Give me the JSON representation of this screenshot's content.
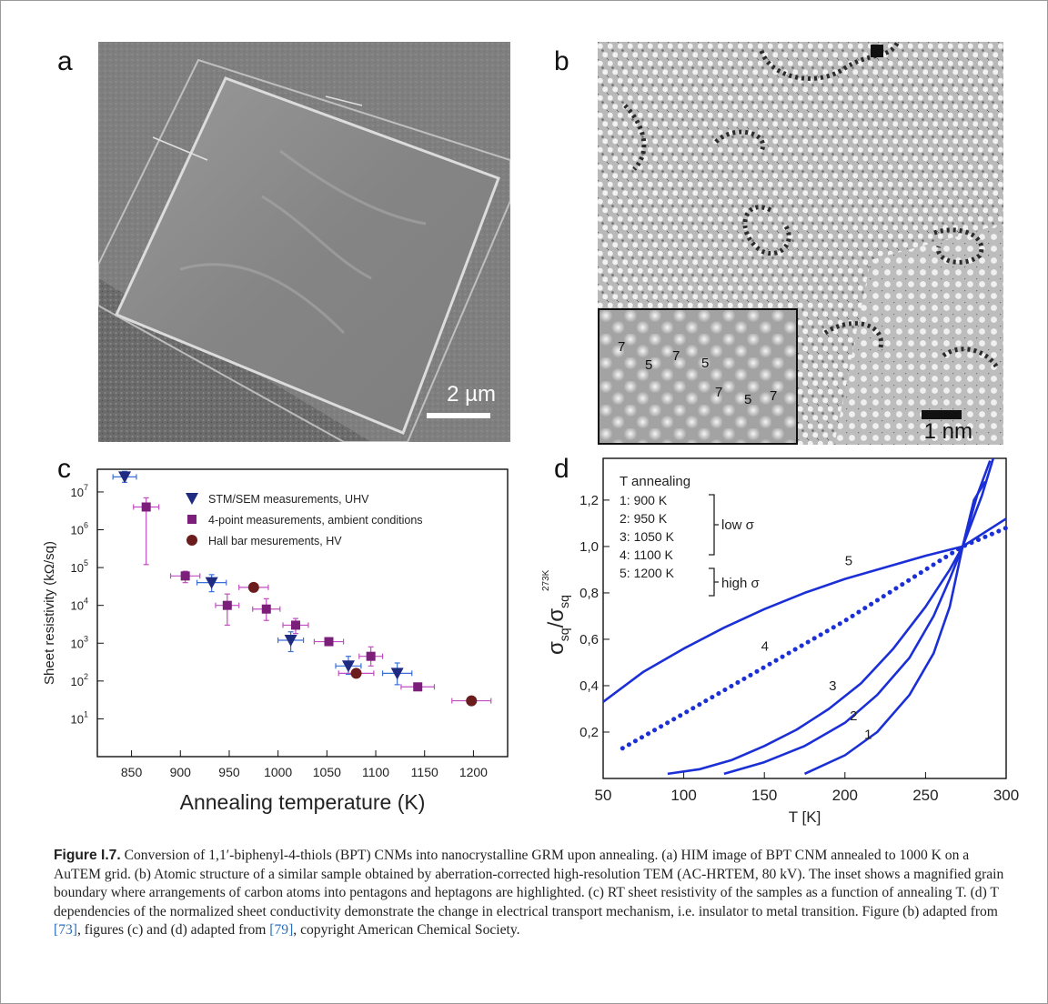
{
  "panels": {
    "a": {
      "letter": "a",
      "scalebar": "2 µm"
    },
    "b": {
      "letter": "b",
      "scalebar": "1 nm",
      "inset_numbers": [
        "7",
        "5",
        "7",
        "5",
        "7",
        "5",
        "7"
      ]
    },
    "c": {
      "letter": "c"
    },
    "d": {
      "letter": "d"
    }
  },
  "chart_data": [
    {
      "type": "scatter",
      "panel": "c",
      "xlabel": "Annealing temperature (K)",
      "ylabel": "Sheet resistivity (kΩ/sq)",
      "xlim": [
        815,
        1235
      ],
      "ylim_log10": [
        0,
        7.6
      ],
      "yscale": "log",
      "xticks": [
        850,
        900,
        950,
        1000,
        1050,
        1100,
        1150,
        1200
      ],
      "yticks": [
        "10^1",
        "10^2",
        "10^3",
        "10^4",
        "10^5",
        "10^6",
        "10^7"
      ],
      "ytick_exponents": [
        1,
        2,
        3,
        4,
        5,
        6,
        7
      ],
      "legend_position": "top-right",
      "series": [
        {
          "name": "STM/SEM measurements, UHV",
          "marker": "triangle-down",
          "color": "#1f2b80",
          "points": [
            {
              "x": 843,
              "y": 25000000.0,
              "xerr": 12,
              "yerr_lo": 18000000.0,
              "yerr_hi": 35000000.0
            },
            {
              "x": 932,
              "y": 40000.0,
              "xerr": 15,
              "yerr_lo": 23000.0,
              "yerr_hi": 65000.0
            },
            {
              "x": 1013,
              "y": 1200.0,
              "xerr": 13,
              "yerr_lo": 600.0,
              "yerr_hi": 2000.0
            },
            {
              "x": 1072,
              "y": 250,
              "xerr": 13,
              "yerr_lo": 150,
              "yerr_hi": 450
            },
            {
              "x": 1122,
              "y": 160,
              "xerr": 15,
              "yerr_lo": 80,
              "yerr_hi": 300
            }
          ]
        },
        {
          "name": "4-point measurements, ambient conditions",
          "marker": "square",
          "color": "#7b1f7a",
          "points": [
            {
              "x": 865,
              "y": 4000000.0,
              "xerr": 13,
              "yerr_lo": 120000.0,
              "yerr_hi": 7000000.0
            },
            {
              "x": 905,
              "y": 60000.0,
              "xerr": 15,
              "yerr_lo": 40000.0,
              "yerr_hi": 80000.0
            },
            {
              "x": 948,
              "y": 10000.0,
              "xerr": 12,
              "yerr_lo": 3000.0,
              "yerr_hi": 20000.0
            },
            {
              "x": 988,
              "y": 8000.0,
              "xerr": 14,
              "yerr_lo": 4000.0,
              "yerr_hi": 15000.0
            },
            {
              "x": 1018,
              "y": 3000.0,
              "xerr": 13,
              "yerr_lo": 1800.0,
              "yerr_hi": 4500.0
            },
            {
              "x": 1052,
              "y": 1100.0,
              "xerr": 15,
              "yerr_lo": 1100.0,
              "yerr_hi": 1100.0
            },
            {
              "x": 1095,
              "y": 450,
              "xerr": 12,
              "yerr_lo": 250,
              "yerr_hi": 800
            },
            {
              "x": 1143,
              "y": 70,
              "xerr": 17,
              "yerr_lo": 70,
              "yerr_hi": 70
            }
          ]
        },
        {
          "name": "Hall bar mesurements, HV",
          "marker": "circle",
          "color": "#6b1d1d",
          "points": [
            {
              "x": 975,
              "y": 30000.0,
              "xerr": 15,
              "yerr_lo": 30000.0,
              "yerr_hi": 30000.0
            },
            {
              "x": 1080,
              "y": 160,
              "xerr": 18,
              "yerr_lo": 160,
              "yerr_hi": 160
            },
            {
              "x": 1198,
              "y": 30,
              "xerr": 20,
              "yerr_lo": 30,
              "yerr_hi": 30
            }
          ]
        }
      ]
    },
    {
      "type": "line",
      "panel": "d",
      "xlabel": "T [K]",
      "xlim": [
        50,
        300
      ],
      "ylim": [
        0,
        1.38
      ],
      "xticks": [
        50,
        100,
        150,
        200,
        250,
        300
      ],
      "yticks": [
        0.2,
        0.4,
        0.6,
        0.8,
        1.0,
        1.2
      ],
      "ytick_labels": [
        "0,2",
        "0,4",
        "0,6",
        "0,8",
        "1,0",
        "1,2"
      ],
      "ylabel_parts": {
        "sigma": "σ",
        "sub": "sq",
        "sup": "273K"
      },
      "legend": {
        "title": "T annealing",
        "entries": [
          "1:   900 K",
          "2:   950 K",
          "3: 1050 K",
          "4: 1100 K",
          "5: 1200 K"
        ],
        "group_low": "low σ",
        "group_high": "high σ"
      },
      "series": [
        {
          "name": "1",
          "style": "solid",
          "points": [
            [
              175,
              0.02
            ],
            [
              200,
              0.1
            ],
            [
              220,
              0.2
            ],
            [
              240,
              0.36
            ],
            [
              255,
              0.54
            ],
            [
              265,
              0.74
            ],
            [
              273,
              1.0
            ],
            [
              280,
              1.2
            ],
            [
              287,
              1.28
            ]
          ]
        },
        {
          "name": "2",
          "style": "solid",
          "points": [
            [
              125,
              0.02
            ],
            [
              150,
              0.07
            ],
            [
              175,
              0.14
            ],
            [
              200,
              0.24
            ],
            [
              220,
              0.36
            ],
            [
              240,
              0.52
            ],
            [
              255,
              0.7
            ],
            [
              265,
              0.86
            ],
            [
              273,
              1.0
            ],
            [
              282,
              1.22
            ],
            [
              290,
              1.37
            ]
          ]
        },
        {
          "name": "3",
          "style": "solid",
          "points": [
            [
              90,
              0.02
            ],
            [
              110,
              0.04
            ],
            [
              130,
              0.08
            ],
            [
              150,
              0.14
            ],
            [
              170,
              0.21
            ],
            [
              190,
              0.3
            ],
            [
              210,
              0.41
            ],
            [
              230,
              0.56
            ],
            [
              250,
              0.74
            ],
            [
              265,
              0.9
            ],
            [
              273,
              1.0
            ],
            [
              285,
              1.22
            ],
            [
              292,
              1.38
            ]
          ]
        },
        {
          "name": "4",
          "style": "dotted",
          "points": [
            [
              62,
              0.13
            ],
            [
              100,
              0.28
            ],
            [
              150,
              0.48
            ],
            [
              200,
              0.68
            ],
            [
              250,
              0.9
            ],
            [
              273,
              1.0
            ],
            [
              300,
              1.08
            ]
          ]
        },
        {
          "name": "5",
          "style": "solid",
          "points": [
            [
              50,
              0.33
            ],
            [
              75,
              0.46
            ],
            [
              100,
              0.56
            ],
            [
              125,
              0.65
            ],
            [
              150,
              0.73
            ],
            [
              175,
              0.8
            ],
            [
              200,
              0.86
            ],
            [
              225,
              0.91
            ],
            [
              250,
              0.96
            ],
            [
              273,
              1.0
            ],
            [
              300,
              1.12
            ]
          ]
        }
      ],
      "curve_labels": [
        {
          "text": "1",
          "x": 212,
          "y": 0.17
        },
        {
          "text": "2",
          "x": 203,
          "y": 0.25
        },
        {
          "text": "3",
          "x": 190,
          "y": 0.38
        },
        {
          "text": "4",
          "x": 148,
          "y": 0.55
        },
        {
          "text": "5",
          "x": 200,
          "y": 0.92
        }
      ]
    }
  ],
  "caption": {
    "label": "Figure I.7.",
    "text": "Conversion of 1,1′-biphenyl-4-thiols (BPT) CNMs into nanocrystalline GRM upon annealing. (a) HIM image of BPT CNM annealed to 1000 K on a AuTEM grid. (b) Atomic structure of a similar sample obtained by aberration-corrected high-resolution TEM (AC-HRTEM, 80 kV). The inset shows a magnified grain boundary where arrangements of carbon atoms into pentagons and heptagons are highlighted. (c) RT sheet resistivity of the samples as a function of annealing T. (d) T dependencies of the normalized sheet conductivity demonstrate the change in electrical transport mechanism, i.e. insulator to metal transition. Figure (b) adapted from",
    "ref1": "[73]",
    "mid": ", figures (c) and (d) adapted from",
    "ref2": "[79]",
    "end": ", copyright American Chemical Society."
  }
}
